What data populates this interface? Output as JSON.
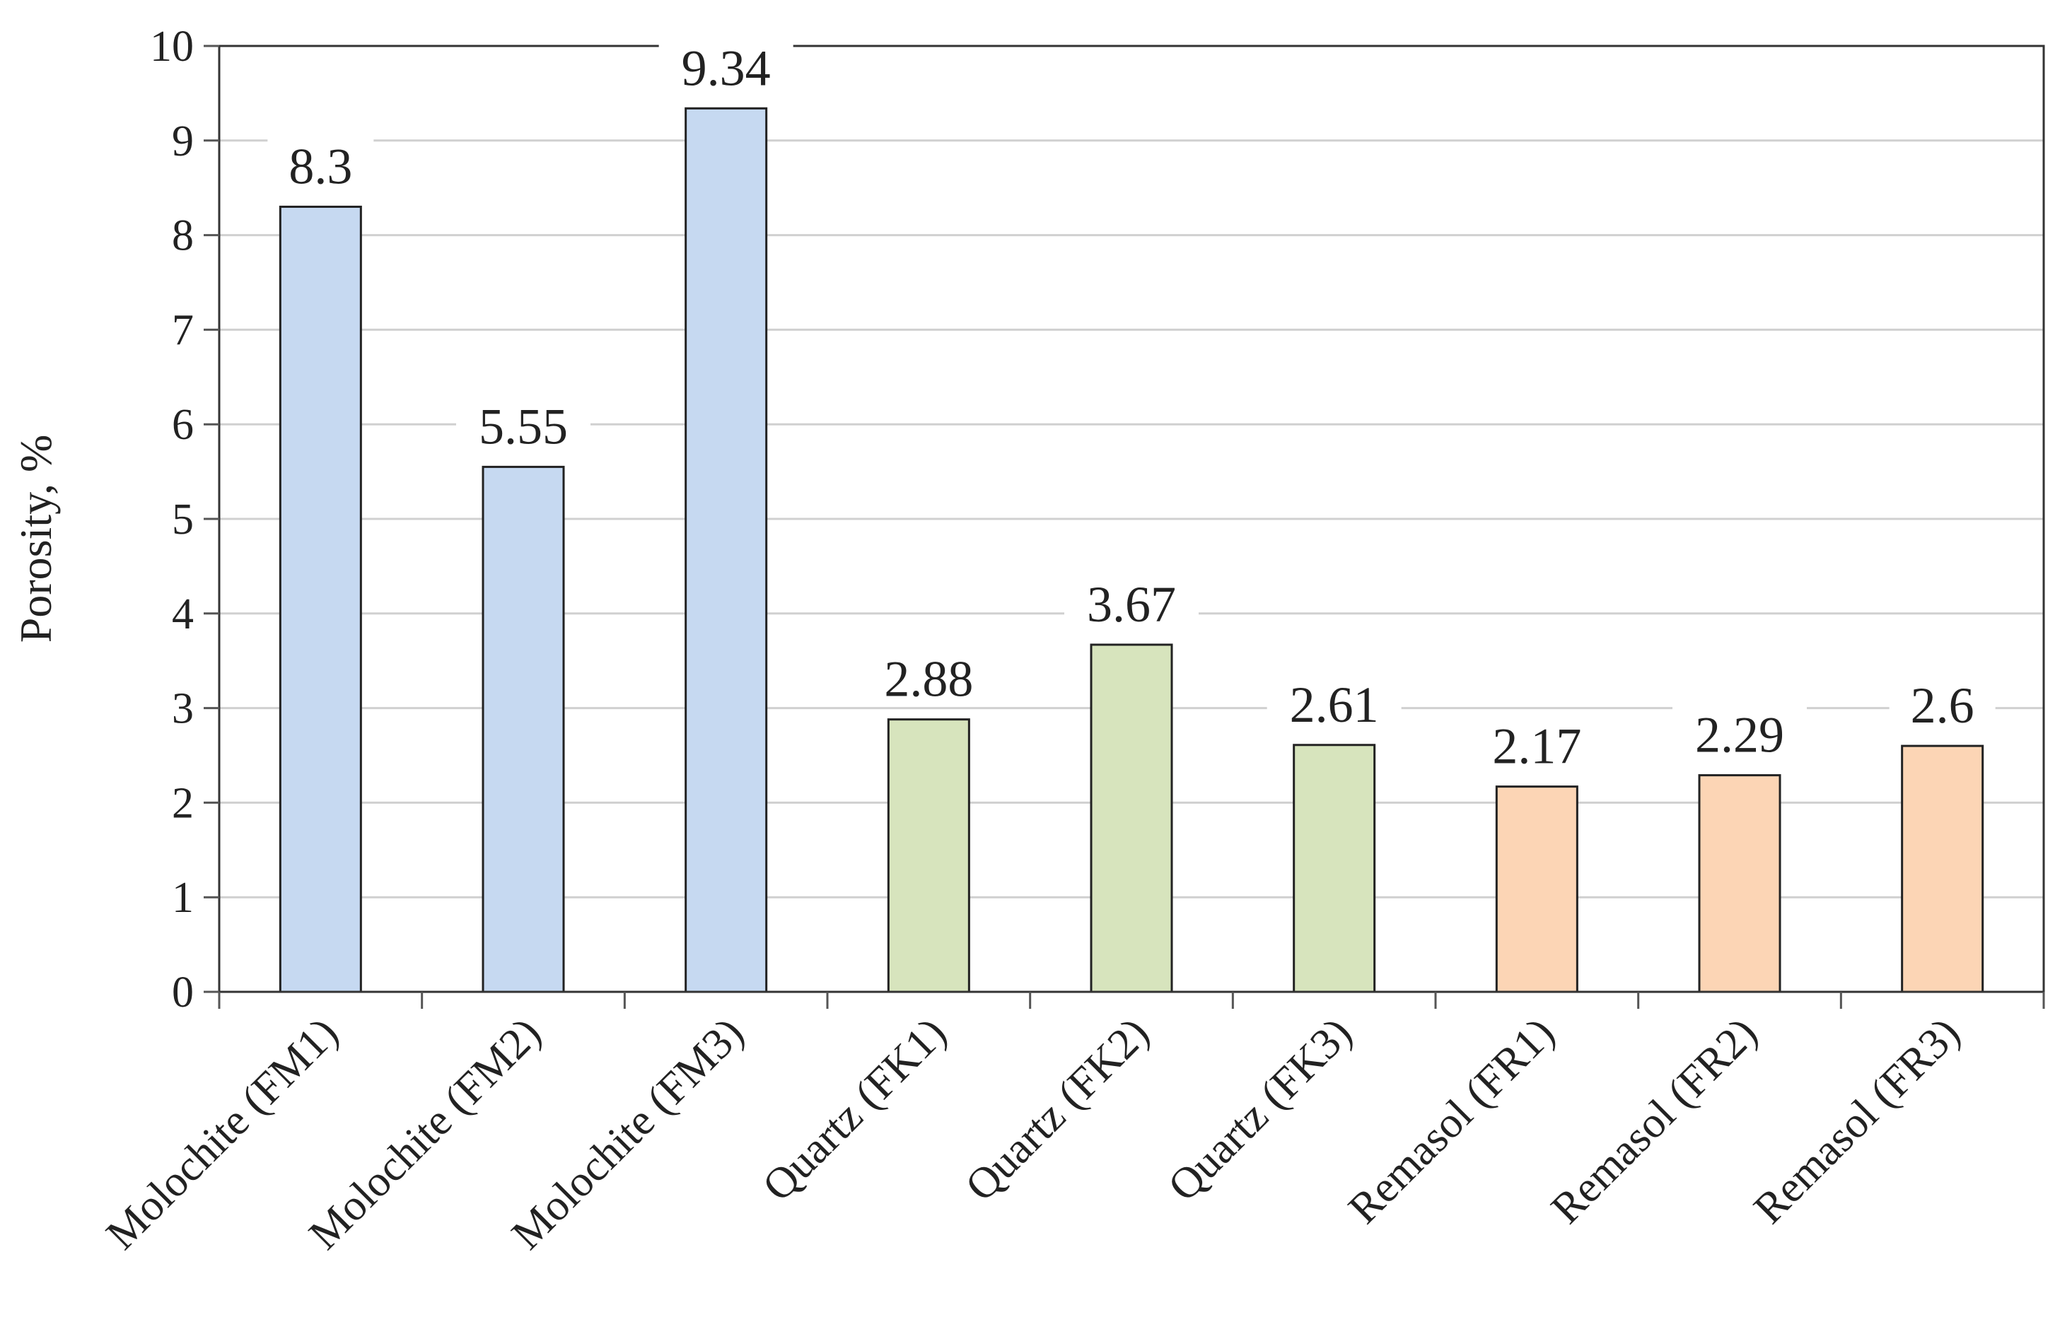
{
  "chart_data": {
    "type": "bar",
    "title": "",
    "xlabel": "",
    "ylabel": "Porosity, %",
    "ylim": [
      0,
      10
    ],
    "yticks": [
      0,
      1,
      2,
      3,
      4,
      5,
      6,
      7,
      8,
      9,
      10
    ],
    "grid": true,
    "legend": "none",
    "categories": [
      "Molochite (FM1)",
      "Molochite (FM2)",
      "Molochite (FM3)",
      "Quartz (FK1)",
      "Quartz (FK2)",
      "Quartz (FK3)",
      "Remasol (FR1)",
      "Remasol (FR2)",
      "Remasol (FR3)"
    ],
    "values": [
      8.3,
      5.55,
      9.34,
      2.88,
      3.67,
      2.61,
      2.17,
      2.29,
      2.6
    ],
    "data_labels": [
      "8.3",
      "5.55",
      "9.34",
      "2.88",
      "3.67",
      "2.61",
      "2.17",
      "2.29",
      "2.6"
    ],
    "bar_colors": [
      "#c6d9f1",
      "#c6d9f1",
      "#c6d9f1",
      "#d7e4bd",
      "#d7e4bd",
      "#d7e4bd",
      "#fcd5b5",
      "#fcd5b5",
      "#fcd5b5"
    ]
  }
}
